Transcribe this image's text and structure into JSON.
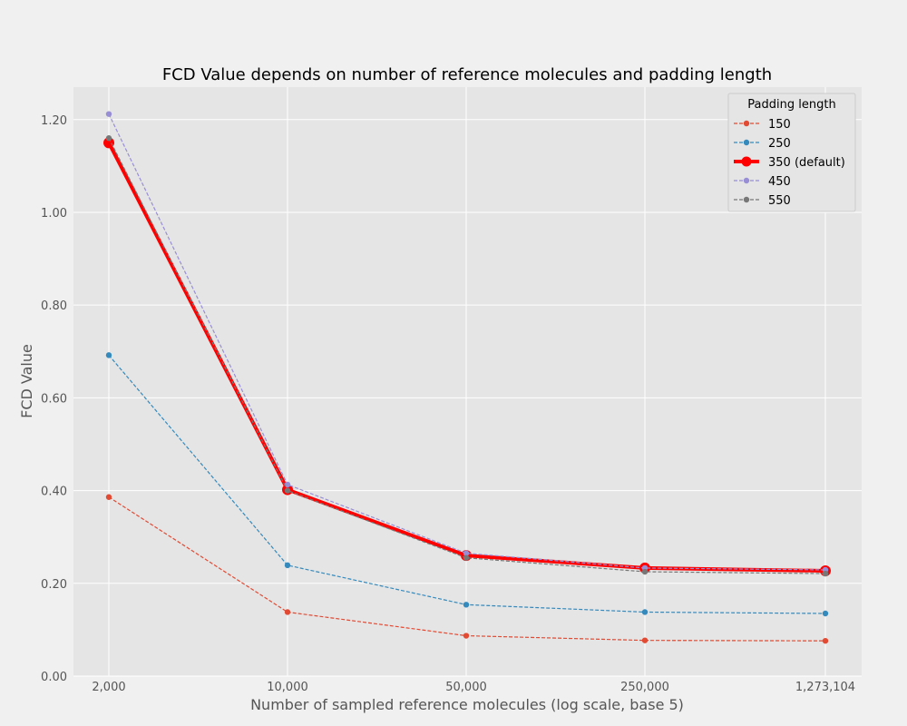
{
  "chart_data": {
    "type": "line",
    "title": "FCD Value depends on number of reference molecules and padding length",
    "xlabel": "Number of sampled reference molecules (log scale, base 5)",
    "ylabel": "FCD Value",
    "x": [
      2000,
      10000,
      50000,
      250000,
      1273104
    ],
    "x_tick_labels": [
      "2,000",
      "10,000",
      "50,000",
      "250,000",
      "1,273,104"
    ],
    "x_scale": "log5",
    "ylim": [
      0,
      1.27
    ],
    "y_ticks": [
      0,
      0.2,
      0.4,
      0.6,
      0.8,
      1.0,
      1.2
    ],
    "y_tick_labels": [
      "0.00",
      "0.20",
      "0.40",
      "0.60",
      "0.80",
      "1.00",
      "1.20"
    ],
    "grid": true,
    "legend": {
      "title": "Padding length",
      "placement": "top-right"
    },
    "series": [
      {
        "name": "150",
        "values": [
          0.386,
          0.138,
          0.087,
          0.077,
          0.076
        ],
        "color": "#e24a33",
        "style": "dashed"
      },
      {
        "name": "250",
        "values": [
          0.692,
          0.239,
          0.154,
          0.138,
          0.135
        ],
        "color": "#348abd",
        "style": "dashed"
      },
      {
        "name": "350 (default)",
        "values": [
          1.15,
          0.402,
          0.26,
          0.233,
          0.227
        ],
        "color": "#ff0000",
        "style": "bold"
      },
      {
        "name": "450",
        "values": [
          1.212,
          0.413,
          0.265,
          0.233,
          0.229
        ],
        "color": "#988ed5",
        "style": "dashed"
      },
      {
        "name": "550",
        "values": [
          1.16,
          0.4,
          0.255,
          0.225,
          0.221
        ],
        "color": "#777777",
        "style": "dashed"
      }
    ]
  }
}
